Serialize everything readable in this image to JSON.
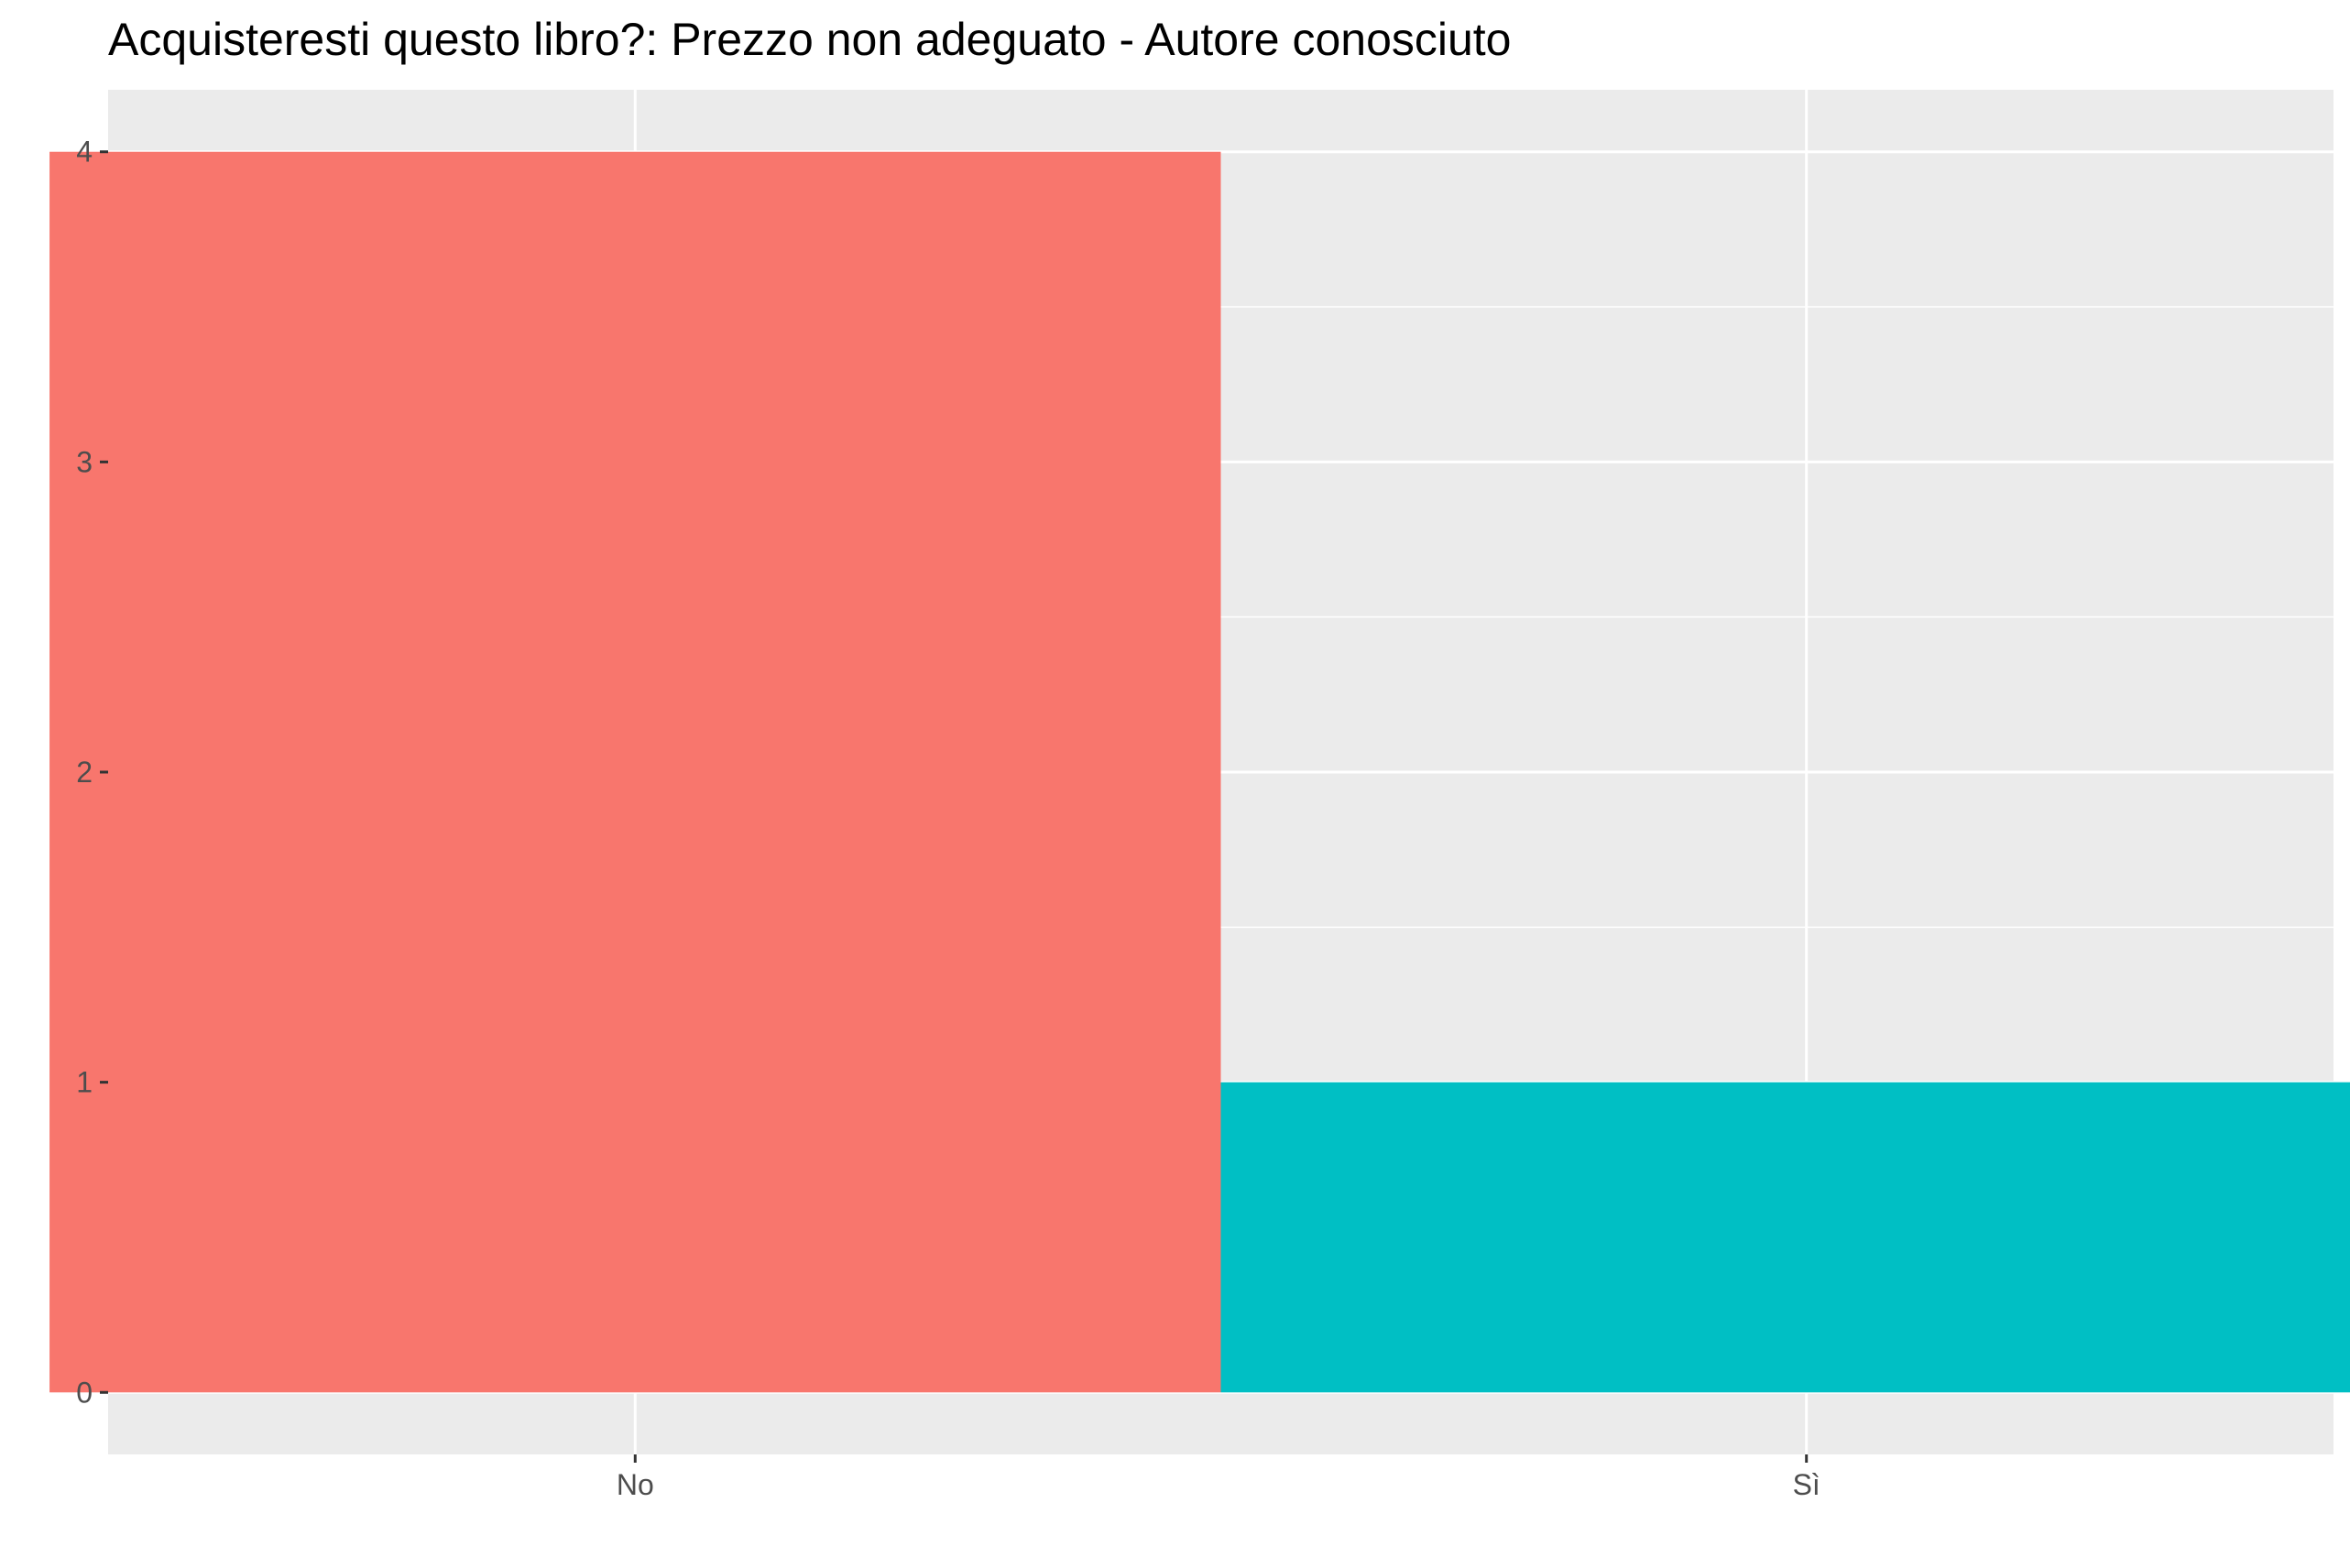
{
  "chart_data": {
    "type": "bar",
    "title": "Acquisteresti questo libro?: Prezzo non adeguato - Autore conosciuto",
    "xlabel": "",
    "ylabel": "",
    "categories": [
      "No",
      "Sì"
    ],
    "values": [
      4,
      1
    ],
    "colors": [
      "#F8766D",
      "#00BFC4"
    ],
    "ylim": [
      -0.2,
      4.2
    ],
    "yticks": [
      0,
      1,
      2,
      3,
      4
    ],
    "grid": true,
    "legend": "none",
    "panel_background": "#EBEBEB",
    "grid_color": "#FFFFFF"
  }
}
